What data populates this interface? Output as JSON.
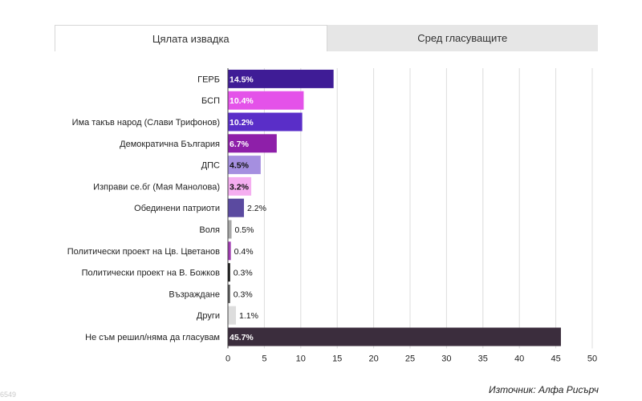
{
  "tabs": [
    {
      "label": "Цялата извадка",
      "active": true
    },
    {
      "label": "Сред гласуващите",
      "active": false
    }
  ],
  "source": "Източник: Алфа Рисърч",
  "corner_mark": "6549",
  "chart_data": {
    "type": "bar",
    "orientation": "horizontal",
    "categories": [
      "ГЕРБ",
      "БСП",
      "Има такъв народ (Слави Трифонов)",
      "Демократична България",
      "ДПС",
      "Изправи се.бг (Мая Манолова)",
      "Обединени патриоти",
      "Воля",
      "Политически проект на Цв. Цветанов",
      "Политически проект на В. Божков",
      "Възраждане",
      "Други",
      "Не съм решил/няма да гласувам"
    ],
    "values": [
      14.5,
      10.4,
      10.2,
      6.7,
      4.5,
      3.2,
      2.2,
      0.5,
      0.4,
      0.3,
      0.3,
      1.1,
      45.7
    ],
    "value_labels": [
      "14.5%",
      "10.4%",
      "10.2%",
      "6.7%",
      "4.5%",
      "3.2%",
      "2.2%",
      "0.5%",
      "0.4%",
      "0.3%",
      "0.3%",
      "1.1%",
      "45.7%"
    ],
    "colors": [
      "#3f1c96",
      "#e452e9",
      "#5a2ec8",
      "#8e1fa9",
      "#a58fe0",
      "#f5aef0",
      "#5b4aa0",
      "#a8a8a8",
      "#a03cb0",
      "#111111",
      "#555555",
      "#dddddd",
      "#3b2d3d"
    ],
    "label_inside": [
      true,
      true,
      true,
      true,
      true,
      true,
      false,
      false,
      false,
      false,
      false,
      false,
      true
    ],
    "label_colors": [
      "#ffffff",
      "#ffffff",
      "#ffffff",
      "#ffffff",
      "#111111",
      "#111111",
      "#111111",
      "#111111",
      "#111111",
      "#111111",
      "#111111",
      "#111111",
      "#ffffff"
    ],
    "xlim": [
      0,
      50
    ],
    "xticks": [
      0,
      5,
      10,
      15,
      20,
      25,
      30,
      35,
      40,
      45,
      50
    ],
    "grid": true
  }
}
